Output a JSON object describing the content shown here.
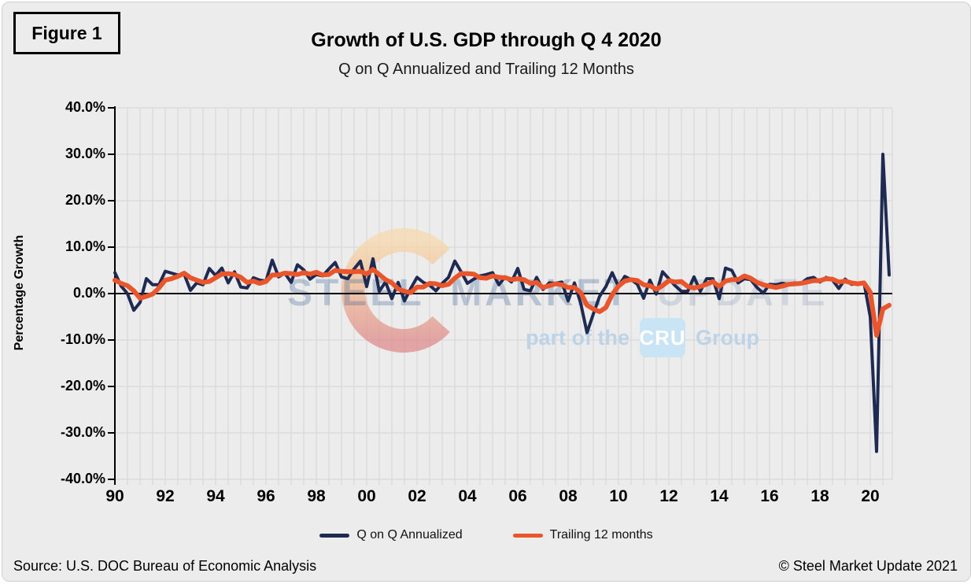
{
  "figure_label": "Figure 1",
  "header": {
    "title": "Growth of U.S. GDP through Q 4 2020",
    "subtitle": "Q on Q Annualized and Trailing 12 Months"
  },
  "watermark": {
    "words": [
      "STEEL",
      "MARKET",
      "UPDATE"
    ],
    "tagline_prefix": "part of the",
    "tagline_logo": "CRU",
    "tagline_suffix": "Group"
  },
  "legend": [
    {
      "label": "Q on Q Annualized",
      "color": "#1F2A52"
    },
    {
      "label": "Trailing 12 months",
      "color": "#EA562B"
    }
  ],
  "footer": {
    "source": "Source: U.S. DOC Bureau of Economic Analysis",
    "copyright": "© Steel Market Update 2021"
  },
  "colors": {
    "background": "#ececec",
    "gridline": "#d9d9d9",
    "axis": "#000000",
    "qonq_line": "#1F2A52",
    "trailing_line": "#EA562B"
  },
  "chart_data": {
    "type": "line",
    "title": "Growth of U.S. GDP through Q 4 2020",
    "subtitle": "Q on Q Annualized and Trailing 12 Months",
    "ylabel": "Percentage Growth",
    "ylim": [
      -40,
      40
    ],
    "y_tick_step": 10,
    "y_tick_labels": [
      "40.0%",
      "30.0%",
      "20.0%",
      "10.0%",
      "0.0%",
      "-10.0%",
      "-20.0%",
      "-30.0%",
      "-40.0%"
    ],
    "x_tick_labels": [
      "90",
      "92",
      "94",
      "96",
      "98",
      "00",
      "02",
      "04",
      "06",
      "08",
      "10",
      "12",
      "14",
      "16",
      "18",
      "20"
    ],
    "x_tick_interval_quarters": 8,
    "x_start": "1990 Q1",
    "x_end": "2020 Q4",
    "x_frequency": "quarterly",
    "grid": true,
    "zero_line": true,
    "legend_position": "bottom",
    "series": [
      {
        "name": "Q on Q Annualized",
        "color": "#1F2A52",
        "width": 4,
        "values": [
          4.5,
          1.6,
          0.0,
          -3.6,
          -1.9,
          3.2,
          1.9,
          1.9,
          4.8,
          4.4,
          4.0,
          4.2,
          0.7,
          2.3,
          1.9,
          5.4,
          3.9,
          5.5,
          2.3,
          4.7,
          1.4,
          1.2,
          3.4,
          2.9,
          2.7,
          7.2,
          3.6,
          4.4,
          2.4,
          6.2,
          5.1,
          3.1,
          4.1,
          3.8,
          5.3,
          6.7,
          3.6,
          3.2,
          5.3,
          7.0,
          1.5,
          7.5,
          0.5,
          2.5,
          -1.1,
          2.4,
          -1.6,
          1.1,
          3.5,
          2.4,
          1.8,
          0.6,
          2.2,
          3.5,
          7.0,
          4.7,
          2.2,
          3.1,
          3.8,
          4.1,
          4.5,
          1.9,
          3.6,
          2.5,
          5.4,
          0.9,
          0.6,
          3.5,
          0.9,
          2.3,
          2.2,
          2.5,
          -1.6,
          2.3,
          -2.1,
          -8.4,
          -4.4,
          -0.6,
          1.5,
          4.5,
          1.5,
          3.7,
          3.0,
          2.0,
          -1.0,
          2.9,
          -0.1,
          4.7,
          3.2,
          1.7,
          0.5,
          0.5,
          3.6,
          0.5,
          3.2,
          3.2,
          -1.1,
          5.5,
          5.0,
          2.3,
          3.2,
          3.0,
          1.3,
          0.1,
          2.0,
          1.9,
          2.2,
          2.0,
          2.3,
          2.2,
          3.2,
          3.5,
          2.5,
          3.5,
          2.9,
          1.1,
          3.1,
          2.0,
          2.1,
          2.4,
          -5.0,
          -34.0,
          30.0,
          4.0
        ]
      },
      {
        "name": "Trailing 12 months",
        "color": "#EA562B",
        "width": 6,
        "values": [
          2.9,
          2.2,
          1.7,
          0.6,
          -1.0,
          -0.6,
          -0.1,
          1.2,
          2.9,
          3.2,
          3.7,
          4.4,
          3.4,
          2.9,
          2.4,
          2.6,
          3.4,
          4.2,
          4.3,
          4.1,
          3.5,
          2.4,
          2.7,
          2.2,
          2.6,
          4.0,
          4.0,
          4.4,
          4.3,
          4.1,
          4.5,
          4.2,
          4.6,
          4.0,
          4.1,
          5.0,
          4.8,
          4.7,
          4.7,
          4.8,
          4.2,
          5.2,
          4.1,
          3.0,
          2.3,
          1.0,
          0.5,
          0.2,
          1.4,
          1.4,
          2.2,
          2.1,
          1.7,
          2.0,
          3.3,
          4.3,
          4.3,
          4.2,
          3.4,
          3.3,
          3.8,
          3.5,
          3.4,
          3.0,
          3.2,
          3.0,
          2.2,
          2.4,
          1.3,
          1.7,
          2.1,
          1.9,
          1.3,
          1.3,
          0.2,
          -2.5,
          -3.3,
          -3.9,
          -3.0,
          -0.2,
          1.6,
          2.7,
          3.0,
          2.8,
          1.9,
          1.7,
          0.9,
          1.7,
          2.8,
          2.5,
          2.6,
          1.5,
          1.2,
          1.5,
          2.0,
          2.6,
          1.5,
          2.7,
          3.0,
          3.0,
          3.8,
          3.3,
          2.4,
          1.9,
          1.6,
          1.3,
          1.6,
          2.0,
          2.1,
          2.2,
          2.5,
          2.8,
          2.8,
          3.2,
          3.1,
          2.5,
          2.7,
          2.3,
          2.1,
          2.3,
          0.3,
          -9.0,
          -3.3,
          -2.5
        ]
      }
    ]
  }
}
